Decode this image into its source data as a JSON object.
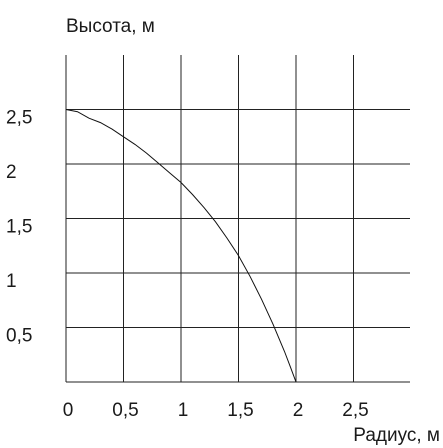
{
  "chart_data": {
    "type": "line",
    "title": "",
    "xlabel": "Радиус, м",
    "ylabel": "Высота, м",
    "xlim": [
      0,
      3
    ],
    "ylim": [
      0,
      3
    ],
    "grid": true,
    "x_ticks": [
      {
        "value": 0,
        "label": "0"
      },
      {
        "value": 0.5,
        "label": "0,5"
      },
      {
        "value": 1,
        "label": "1"
      },
      {
        "value": 1.5,
        "label": "1,5"
      },
      {
        "value": 2,
        "label": "2"
      },
      {
        "value": 2.5,
        "label": "2,5"
      }
    ],
    "y_ticks": [
      {
        "value": 0.5,
        "label": "0,5"
      },
      {
        "value": 1,
        "label": "1"
      },
      {
        "value": 1.5,
        "label": "1,5"
      },
      {
        "value": 2,
        "label": "2"
      },
      {
        "value": 2.5,
        "label": "2,5"
      }
    ],
    "series": [
      {
        "x": [
          0,
          0.1,
          0.2,
          0.3,
          0.4,
          0.5,
          0.6,
          0.7,
          0.8,
          0.9,
          1.0,
          1.1,
          1.2,
          1.3,
          1.4,
          1.5,
          1.6,
          1.7,
          1.8,
          1.9,
          1.95,
          2.0
        ],
        "y": [
          2.5,
          2.48,
          2.42,
          2.38,
          2.32,
          2.25,
          2.18,
          2.1,
          2.01,
          1.92,
          1.83,
          1.72,
          1.6,
          1.47,
          1.32,
          1.16,
          0.97,
          0.76,
          0.53,
          0.28,
          0.14,
          0.0
        ]
      }
    ]
  }
}
